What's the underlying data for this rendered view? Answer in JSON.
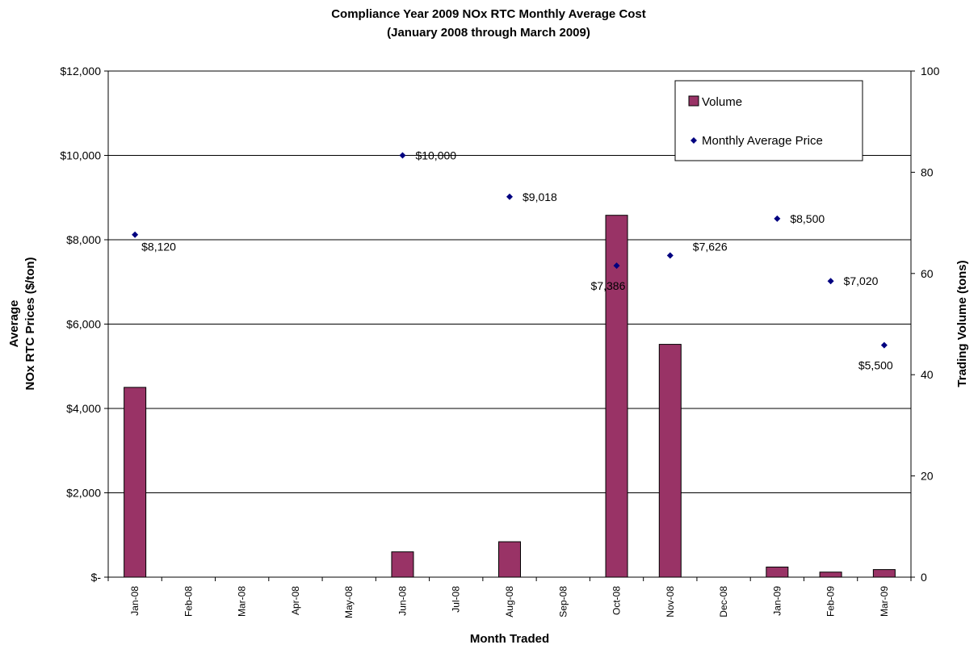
{
  "chart_data": {
    "type": "bar",
    "title": "Compliance Year 2009 NOx RTC Monthly Average Cost",
    "subtitle": "(January 2008 through March 2009)",
    "xlabel": "Month Traded",
    "ylabel_left_line1": "Average",
    "ylabel_left_line2": "NOx RTC Prices ($/ton)",
    "ylabel_right": "Trading Volume (tons)",
    "categories": [
      "Jan-08",
      "Feb-08",
      "Mar-08",
      "Apr-08",
      "May-08",
      "Jun-08",
      "Jul-08",
      "Aug-08",
      "Sep-08",
      "Oct-08",
      "Nov-08",
      "Dec-08",
      "Jan-09",
      "Feb-09",
      "Mar-09"
    ],
    "ylim_left": [
      0,
      12000
    ],
    "ylim_right": [
      0,
      100
    ],
    "left_ticks": [
      "$-",
      "$2,000",
      "$4,000",
      "$6,000",
      "$8,000",
      "$10,000",
      "$12,000"
    ],
    "right_ticks": [
      "0",
      "20",
      "40",
      "60",
      "80",
      "100"
    ],
    "grid": true,
    "legend_position": "top-right",
    "series": [
      {
        "name": "Volume",
        "kind": "bar",
        "axis": "right",
        "color": "#993366",
        "values": [
          37.5,
          0,
          0,
          0,
          0,
          5,
          0,
          7,
          0,
          71.5,
          46,
          0,
          2,
          1,
          1.5
        ]
      },
      {
        "name": "Monthly Average Price",
        "kind": "scatter",
        "axis": "left",
        "color": "#000080",
        "values": [
          8120,
          null,
          null,
          null,
          null,
          10000,
          null,
          9018,
          null,
          7386,
          7626,
          null,
          8500,
          7020,
          5500
        ],
        "labels": [
          "$8,120",
          null,
          null,
          null,
          null,
          "$10,000",
          null,
          "$9,018",
          null,
          "$7,386",
          "$7,626",
          null,
          "$8,500",
          "$7,020",
          "$5,500"
        ],
        "label_placement": [
          "below-right",
          null,
          null,
          null,
          null,
          "right",
          null,
          "right",
          null,
          "below-right",
          "right",
          null,
          "right",
          "right",
          "below-left"
        ]
      }
    ]
  }
}
